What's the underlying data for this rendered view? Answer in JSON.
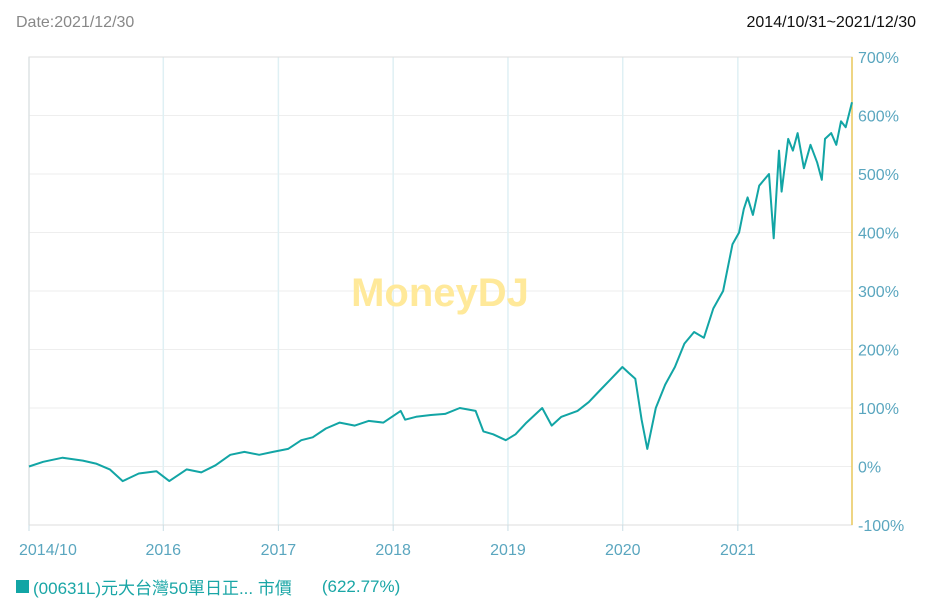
{
  "header": {
    "date_label": "Date:2021/12/30",
    "range_label": "2014/10/31~2021/12/30"
  },
  "watermark": "MoneyDJ",
  "legend": {
    "series_name": "(00631L)元大台灣50單日正... 市價",
    "last_value": "(622.77%)"
  },
  "colors": {
    "line": "#12a5a5",
    "axis_text": "#5aa6bf",
    "right_axis": "#e8c75a",
    "grid": "#eeeeee",
    "watermark": "#ffe99a"
  },
  "chart_data": {
    "type": "line",
    "x_tick_labels": [
      "2014/10",
      "2016",
      "2017",
      "2018",
      "2019",
      "2020",
      "2021"
    ],
    "x_tick_dates": [
      "2014-10-31",
      "2016-01-01",
      "2017-01-01",
      "2018-01-01",
      "2019-01-01",
      "2020-01-01",
      "2021-01-01"
    ],
    "xlim": [
      "2014-10-31",
      "2021-12-30"
    ],
    "y_tick_labels": [
      "700%",
      "600%",
      "500%",
      "400%",
      "300%",
      "200%",
      "100%",
      "0%",
      "-100%"
    ],
    "ylim": [
      -100,
      700
    ],
    "grid": true,
    "y_axis_side": "right",
    "series": [
      {
        "name": "(00631L)元大台灣50單日正... 市價",
        "x": [
          "2014-10-31",
          "2014-12-15",
          "2015-02-15",
          "2015-04-20",
          "2015-06-01",
          "2015-07-15",
          "2015-08-25",
          "2015-10-15",
          "2015-12-10",
          "2016-01-20",
          "2016-03-15",
          "2016-05-01",
          "2016-06-15",
          "2016-08-01",
          "2016-09-15",
          "2016-11-01",
          "2016-12-15",
          "2017-02-01",
          "2017-03-15",
          "2017-04-20",
          "2017-06-01",
          "2017-07-15",
          "2017-09-01",
          "2017-10-15",
          "2017-12-01",
          "2018-01-25",
          "2018-02-08",
          "2018-03-15",
          "2018-05-01",
          "2018-06-15",
          "2018-08-01",
          "2018-09-20",
          "2018-10-15",
          "2018-11-15",
          "2018-12-25",
          "2019-01-25",
          "2019-03-01",
          "2019-04-20",
          "2019-05-20",
          "2019-06-20",
          "2019-08-10",
          "2019-09-15",
          "2019-10-20",
          "2019-11-25",
          "2019-12-31",
          "2020-01-20",
          "2020-02-10",
          "2020-03-01",
          "2020-03-19",
          "2020-04-15",
          "2020-05-15",
          "2020-06-15",
          "2020-07-15",
          "2020-08-15",
          "2020-09-15",
          "2020-10-15",
          "2020-11-15",
          "2020-12-15",
          "2021-01-05",
          "2021-01-20",
          "2021-02-01",
          "2021-02-18",
          "2021-03-10",
          "2021-04-10",
          "2021-04-25",
          "2021-05-12",
          "2021-05-20",
          "2021-06-10",
          "2021-06-25",
          "2021-07-10",
          "2021-07-30",
          "2021-08-20",
          "2021-09-10",
          "2021-09-25",
          "2021-10-05",
          "2021-10-25",
          "2021-11-10",
          "2021-11-25",
          "2021-12-10",
          "2021-12-30"
        ],
        "y": [
          0,
          8,
          15,
          10,
          5,
          -5,
          -25,
          -12,
          -8,
          -25,
          -5,
          -10,
          2,
          20,
          25,
          20,
          25,
          30,
          45,
          50,
          65,
          75,
          70,
          78,
          75,
          95,
          80,
          85,
          88,
          90,
          100,
          95,
          60,
          55,
          45,
          55,
          75,
          100,
          70,
          85,
          95,
          110,
          130,
          150,
          170,
          160,
          150,
          80,
          30,
          100,
          140,
          170,
          210,
          230,
          220,
          270,
          300,
          380,
          400,
          440,
          460,
          430,
          480,
          500,
          390,
          540,
          470,
          560,
          540,
          570,
          510,
          550,
          520,
          490,
          560,
          570,
          550,
          590,
          580,
          622.77
        ]
      }
    ]
  }
}
